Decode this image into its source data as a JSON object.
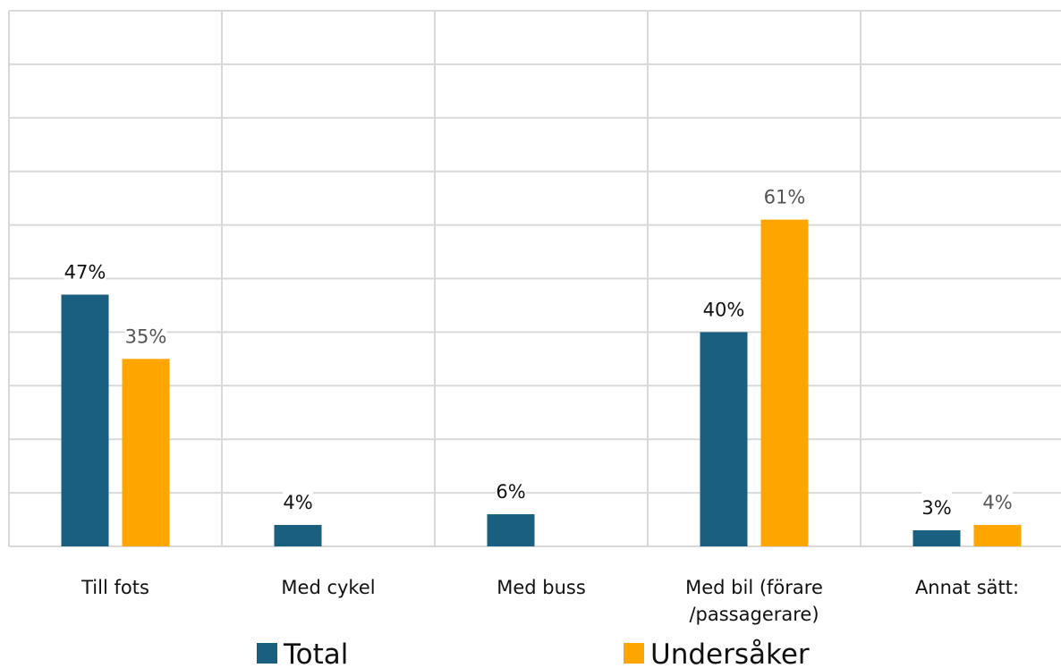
{
  "chart_data": {
    "type": "bar",
    "categories": [
      [
        "Till fots"
      ],
      [
        "Med cykel"
      ],
      [
        "Med buss"
      ],
      [
        "Med bil (förare",
        "/passagerare)"
      ],
      [
        "Annat sätt:"
      ]
    ],
    "series": [
      {
        "name": "Total",
        "color": "#1a5f7f",
        "values": [
          47,
          4,
          6,
          40,
          3
        ],
        "labels": [
          "47%",
          "4%",
          "6%",
          "40%",
          "3%"
        ],
        "label_color": "#111111"
      },
      {
        "name": "Undersåker",
        "color": "#ffa500",
        "values": [
          35,
          null,
          null,
          61,
          4
        ],
        "labels": [
          "35%",
          null,
          null,
          "61%",
          "4%"
        ],
        "label_color": "#555555"
      }
    ],
    "ylim": [
      0,
      100
    ],
    "grid": true,
    "legend": "bottom"
  }
}
